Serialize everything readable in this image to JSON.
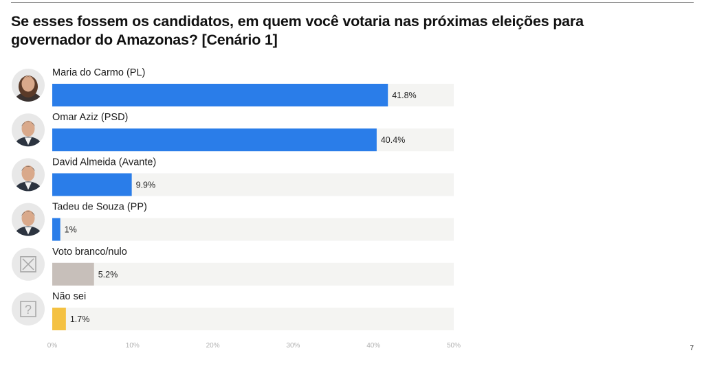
{
  "title_lines": [
    "Se esses fossem os candidatos, em quem você votaria nas próximas eleições para",
    "governador do Amazonas? [Cenário 1]"
  ],
  "page_number": "7",
  "colors": {
    "candidate": "#2a7de9",
    "blank": "#c7bfba",
    "dont_know": "#f4c142",
    "track": "#f4f4f2",
    "tick": "#b0b0b0"
  },
  "chart_data": {
    "type": "bar",
    "orientation": "horizontal",
    "categories": [
      "Maria do Carmo (PL)",
      "Omar Aziz (PSD)",
      "David Almeida (Avante)",
      "Tadeu de Souza (PP)",
      "Voto branco/nulo",
      "Não sei"
    ],
    "values": [
      41.8,
      40.4,
      9.9,
      1,
      5.2,
      1.7
    ],
    "value_labels": [
      "41.8%",
      "40.4%",
      "9.9%",
      "1%",
      "5.2%",
      "1.7%"
    ],
    "bar_color_keys": [
      "candidate",
      "candidate",
      "candidate",
      "candidate",
      "blank",
      "dont_know"
    ],
    "icons": [
      "person-photo-icon",
      "person-photo-icon",
      "person-photo-icon",
      "person-photo-icon",
      "x-box-icon",
      "question-box-icon"
    ],
    "xlim": [
      0,
      50
    ],
    "xticks": [
      0,
      10,
      20,
      30,
      40,
      50
    ],
    "xtick_labels": [
      "0%",
      "10%",
      "20%",
      "30%",
      "40%",
      "50%"
    ],
    "grid": false,
    "legend": "none"
  }
}
